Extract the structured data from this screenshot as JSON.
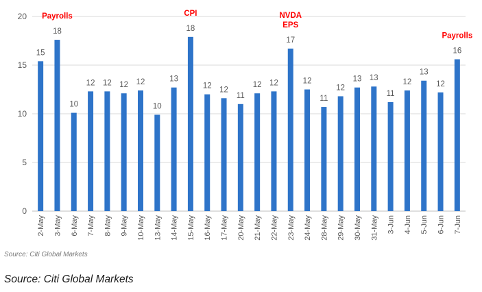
{
  "chart_data": {
    "type": "bar",
    "title": "",
    "xlabel": "",
    "ylabel": "",
    "ylim": [
      0,
      20
    ],
    "yticks": [
      0,
      5,
      10,
      15,
      20
    ],
    "grid": true,
    "bar_color": "#2E74C9",
    "annotation_color": "#FF0000",
    "categories": [
      "2-May",
      "3-May",
      "6-May",
      "7-May",
      "8-May",
      "9-May",
      "10-May",
      "13-May",
      "14-May",
      "15-May",
      "16-May",
      "17-May",
      "20-May",
      "21-May",
      "22-May",
      "23-May",
      "24-May",
      "28-May",
      "29-May",
      "30-May",
      "31-May",
      "3-Jun",
      "4-Jun",
      "5-Jun",
      "6-Jun",
      "7-Jun"
    ],
    "values": [
      15.4,
      17.6,
      10.1,
      12.3,
      12.3,
      12.1,
      12.4,
      9.9,
      12.7,
      17.9,
      12.0,
      11.6,
      11.0,
      12.1,
      12.3,
      16.7,
      12.5,
      10.7,
      11.8,
      12.7,
      12.8,
      11.2,
      12.4,
      13.4,
      12.2,
      15.6
    ],
    "data_labels": [
      "15",
      "18",
      "10",
      "12",
      "12",
      "12",
      "12",
      "10",
      "13",
      "18",
      "12",
      "12",
      "11",
      "12",
      "12",
      "17",
      "12",
      "11",
      "12",
      "13",
      "13",
      "11",
      "12",
      "13",
      "12",
      "16"
    ],
    "annotations": [
      {
        "category_index": 1,
        "lines": [
          "Payrolls"
        ]
      },
      {
        "category_index": 9,
        "lines": [
          "CPI"
        ]
      },
      {
        "category_index": 15,
        "lines": [
          "NVDA",
          "EPS"
        ]
      },
      {
        "category_index": 25,
        "lines": [
          "Payrolls"
        ]
      }
    ]
  },
  "source_inner": "Source: Citi Global Markets",
  "source_caption": "Source: Citi Global Markets"
}
